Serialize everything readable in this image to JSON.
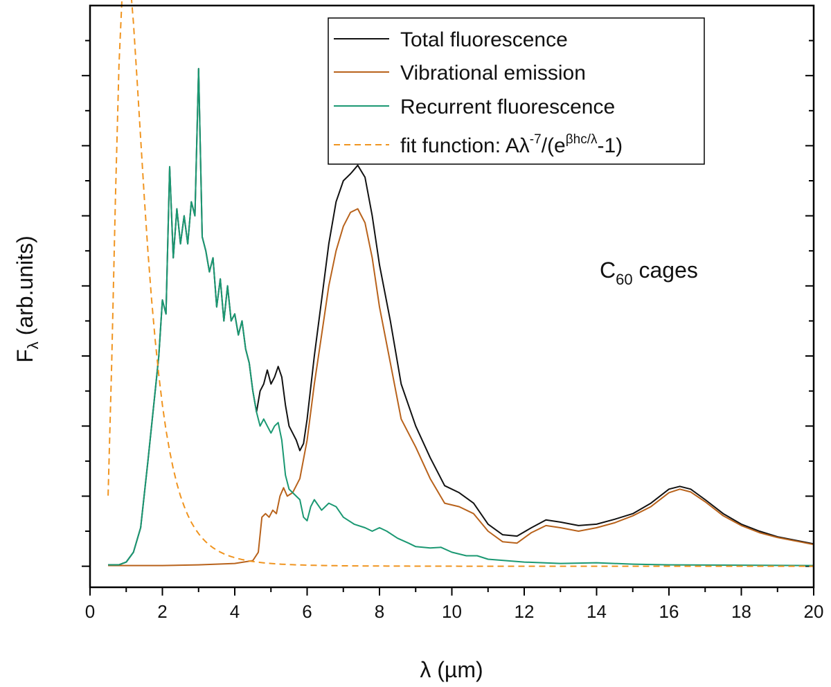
{
  "chart_data": {
    "type": "line",
    "title": "",
    "xlabel": "λ (µm)",
    "ylabel_main": "F",
    "ylabel_sub": "λ",
    "ylabel_rest": " (arb.units)",
    "xlim": [
      0,
      20
    ],
    "ylim": [
      -0.3,
      8
    ],
    "x_ticks": [
      0,
      2,
      4,
      6,
      8,
      10,
      12,
      14,
      16,
      18,
      20
    ],
    "y_major_ticks": [
      0,
      1,
      2,
      3,
      4,
      5,
      6,
      7
    ],
    "annotation": {
      "main": "C",
      "sub": "60",
      "rest": " cages",
      "x": 15.9,
      "y": 4.2
    },
    "legend": {
      "placement": "top-right",
      "entries": [
        {
          "text": "Total fluorescence",
          "color": "#111111",
          "dash": false
        },
        {
          "text": "Vibrational emission",
          "color": "#b8621b",
          "dash": false
        },
        {
          "text": "Recurrent fluorescence",
          "color": "#1a9872",
          "dash": false
        },
        {
          "text_pre": "fit function: Aλ",
          "sup1": "-7",
          "text_mid": "/(e",
          "sup2": "βhc/λ",
          "text_post": "-1)",
          "color": "#f0941f",
          "dash": true
        }
      ]
    },
    "series": [
      {
        "name": "Total fluorescence",
        "color": "#111111",
        "points": [
          [
            0.5,
            0.02
          ],
          [
            0.8,
            0.02
          ],
          [
            1.0,
            0.06
          ],
          [
            1.2,
            0.2
          ],
          [
            1.4,
            0.55
          ],
          [
            1.6,
            1.5
          ],
          [
            1.8,
            2.5
          ],
          [
            1.9,
            3.0
          ],
          [
            2.0,
            3.8
          ],
          [
            2.1,
            3.6
          ],
          [
            2.2,
            5.7
          ],
          [
            2.3,
            4.4
          ],
          [
            2.4,
            5.1
          ],
          [
            2.5,
            4.6
          ],
          [
            2.6,
            5.0
          ],
          [
            2.7,
            4.6
          ],
          [
            2.8,
            5.2
          ],
          [
            2.9,
            5.0
          ],
          [
            3.0,
            7.1
          ],
          [
            3.1,
            4.7
          ],
          [
            3.2,
            4.5
          ],
          [
            3.3,
            4.2
          ],
          [
            3.4,
            4.4
          ],
          [
            3.5,
            3.7
          ],
          [
            3.6,
            4.1
          ],
          [
            3.7,
            3.5
          ],
          [
            3.8,
            4.0
          ],
          [
            3.9,
            3.5
          ],
          [
            4.0,
            3.6
          ],
          [
            4.1,
            3.3
          ],
          [
            4.2,
            3.5
          ],
          [
            4.3,
            3.1
          ],
          [
            4.4,
            2.9
          ],
          [
            4.5,
            2.5
          ],
          [
            4.6,
            2.2
          ],
          [
            4.7,
            2.5
          ],
          [
            4.8,
            2.6
          ],
          [
            4.9,
            2.8
          ],
          [
            5.0,
            2.6
          ],
          [
            5.1,
            2.7
          ],
          [
            5.2,
            2.85
          ],
          [
            5.3,
            2.7
          ],
          [
            5.4,
            2.3
          ],
          [
            5.5,
            2.0
          ],
          [
            5.6,
            1.9
          ],
          [
            5.7,
            1.8
          ],
          [
            5.8,
            1.65
          ],
          [
            5.9,
            1.75
          ],
          [
            6.0,
            2.1
          ],
          [
            6.2,
            3.0
          ],
          [
            6.4,
            3.8
          ],
          [
            6.6,
            4.6
          ],
          [
            6.8,
            5.2
          ],
          [
            7.0,
            5.5
          ],
          [
            7.2,
            5.6
          ],
          [
            7.4,
            5.72
          ],
          [
            7.6,
            5.55
          ],
          [
            7.8,
            5.0
          ],
          [
            8.0,
            4.3
          ],
          [
            8.3,
            3.5
          ],
          [
            8.6,
            2.6
          ],
          [
            9.0,
            2.0
          ],
          [
            9.4,
            1.55
          ],
          [
            9.8,
            1.15
          ],
          [
            10.2,
            1.05
          ],
          [
            10.6,
            0.9
          ],
          [
            11.0,
            0.6
          ],
          [
            11.4,
            0.45
          ],
          [
            11.8,
            0.43
          ],
          [
            12.2,
            0.55
          ],
          [
            12.6,
            0.66
          ],
          [
            13.0,
            0.63
          ],
          [
            13.5,
            0.58
          ],
          [
            14.0,
            0.6
          ],
          [
            14.5,
            0.67
          ],
          [
            15.0,
            0.75
          ],
          [
            15.5,
            0.9
          ],
          [
            16.0,
            1.1
          ],
          [
            16.3,
            1.14
          ],
          [
            16.6,
            1.1
          ],
          [
            17.0,
            0.95
          ],
          [
            17.5,
            0.75
          ],
          [
            18.0,
            0.6
          ],
          [
            18.5,
            0.5
          ],
          [
            19.0,
            0.42
          ],
          [
            19.5,
            0.37
          ],
          [
            20.0,
            0.32
          ]
        ]
      },
      {
        "name": "Vibrational emission",
        "color": "#b8621b",
        "points": [
          [
            0.5,
            0.01
          ],
          [
            2.0,
            0.01
          ],
          [
            3.0,
            0.02
          ],
          [
            4.0,
            0.04
          ],
          [
            4.5,
            0.08
          ],
          [
            4.65,
            0.2
          ],
          [
            4.75,
            0.7
          ],
          [
            4.85,
            0.75
          ],
          [
            4.95,
            0.7
          ],
          [
            5.05,
            0.8
          ],
          [
            5.15,
            0.75
          ],
          [
            5.25,
            1.0
          ],
          [
            5.35,
            1.12
          ],
          [
            5.45,
            1.0
          ],
          [
            5.6,
            1.05
          ],
          [
            5.8,
            1.25
          ],
          [
            6.0,
            1.8
          ],
          [
            6.2,
            2.6
          ],
          [
            6.4,
            3.3
          ],
          [
            6.6,
            4.0
          ],
          [
            6.8,
            4.5
          ],
          [
            7.0,
            4.85
          ],
          [
            7.2,
            5.05
          ],
          [
            7.4,
            5.1
          ],
          [
            7.6,
            4.9
          ],
          [
            7.8,
            4.4
          ],
          [
            8.0,
            3.7
          ],
          [
            8.3,
            2.9
          ],
          [
            8.6,
            2.1
          ],
          [
            9.0,
            1.7
          ],
          [
            9.4,
            1.25
          ],
          [
            9.8,
            0.9
          ],
          [
            10.2,
            0.85
          ],
          [
            10.6,
            0.75
          ],
          [
            11.0,
            0.5
          ],
          [
            11.4,
            0.35
          ],
          [
            11.8,
            0.33
          ],
          [
            12.2,
            0.48
          ],
          [
            12.6,
            0.58
          ],
          [
            13.0,
            0.55
          ],
          [
            13.5,
            0.5
          ],
          [
            14.0,
            0.55
          ],
          [
            14.5,
            0.62
          ],
          [
            15.0,
            0.72
          ],
          [
            15.5,
            0.85
          ],
          [
            16.0,
            1.05
          ],
          [
            16.3,
            1.1
          ],
          [
            16.6,
            1.06
          ],
          [
            17.0,
            0.92
          ],
          [
            17.5,
            0.72
          ],
          [
            18.0,
            0.58
          ],
          [
            18.5,
            0.48
          ],
          [
            19.0,
            0.41
          ],
          [
            19.5,
            0.36
          ],
          [
            20.0,
            0.31
          ]
        ]
      },
      {
        "name": "Recurrent fluorescence",
        "color": "#1a9872",
        "points": [
          [
            0.5,
            0.02
          ],
          [
            0.8,
            0.02
          ],
          [
            1.0,
            0.06
          ],
          [
            1.2,
            0.2
          ],
          [
            1.4,
            0.55
          ],
          [
            1.6,
            1.5
          ],
          [
            1.8,
            2.5
          ],
          [
            1.9,
            3.0
          ],
          [
            2.0,
            3.8
          ],
          [
            2.1,
            3.6
          ],
          [
            2.2,
            5.7
          ],
          [
            2.3,
            4.4
          ],
          [
            2.4,
            5.1
          ],
          [
            2.5,
            4.6
          ],
          [
            2.6,
            5.0
          ],
          [
            2.7,
            4.6
          ],
          [
            2.8,
            5.2
          ],
          [
            2.9,
            5.0
          ],
          [
            3.0,
            7.1
          ],
          [
            3.1,
            4.7
          ],
          [
            3.2,
            4.5
          ],
          [
            3.3,
            4.2
          ],
          [
            3.4,
            4.4
          ],
          [
            3.5,
            3.7
          ],
          [
            3.6,
            4.1
          ],
          [
            3.7,
            3.5
          ],
          [
            3.8,
            4.0
          ],
          [
            3.9,
            3.5
          ],
          [
            4.0,
            3.6
          ],
          [
            4.1,
            3.3
          ],
          [
            4.2,
            3.5
          ],
          [
            4.3,
            3.1
          ],
          [
            4.4,
            2.9
          ],
          [
            4.5,
            2.5
          ],
          [
            4.6,
            2.2
          ],
          [
            4.7,
            2.0
          ],
          [
            4.8,
            2.1
          ],
          [
            4.9,
            2.0
          ],
          [
            5.0,
            1.9
          ],
          [
            5.1,
            2.0
          ],
          [
            5.2,
            2.05
          ],
          [
            5.3,
            1.8
          ],
          [
            5.4,
            1.3
          ],
          [
            5.5,
            1.1
          ],
          [
            5.6,
            1.05
          ],
          [
            5.8,
            0.95
          ],
          [
            5.9,
            0.7
          ],
          [
            6.0,
            0.65
          ],
          [
            6.1,
            0.85
          ],
          [
            6.2,
            0.95
          ],
          [
            6.4,
            0.8
          ],
          [
            6.6,
            0.9
          ],
          [
            6.8,
            0.85
          ],
          [
            7.0,
            0.7
          ],
          [
            7.3,
            0.6
          ],
          [
            7.6,
            0.55
          ],
          [
            7.8,
            0.5
          ],
          [
            8.0,
            0.55
          ],
          [
            8.2,
            0.5
          ],
          [
            8.5,
            0.4
          ],
          [
            8.8,
            0.33
          ],
          [
            9.0,
            0.28
          ],
          [
            9.4,
            0.26
          ],
          [
            9.7,
            0.27
          ],
          [
            10.0,
            0.2
          ],
          [
            10.4,
            0.15
          ],
          [
            10.7,
            0.15
          ],
          [
            11.0,
            0.1
          ],
          [
            12.0,
            0.06
          ],
          [
            13.0,
            0.04
          ],
          [
            14.0,
            0.05
          ],
          [
            15.0,
            0.03
          ],
          [
            16.0,
            0.02
          ],
          [
            18.0,
            0.015
          ],
          [
            20.0,
            0.01
          ]
        ]
      },
      {
        "name": "fit function: Aλ-7/(eβhc/λ-1)",
        "color": "#f0941f",
        "dashed": true,
        "A": 9460,
        "beta_hc": 7.0
      }
    ]
  }
}
